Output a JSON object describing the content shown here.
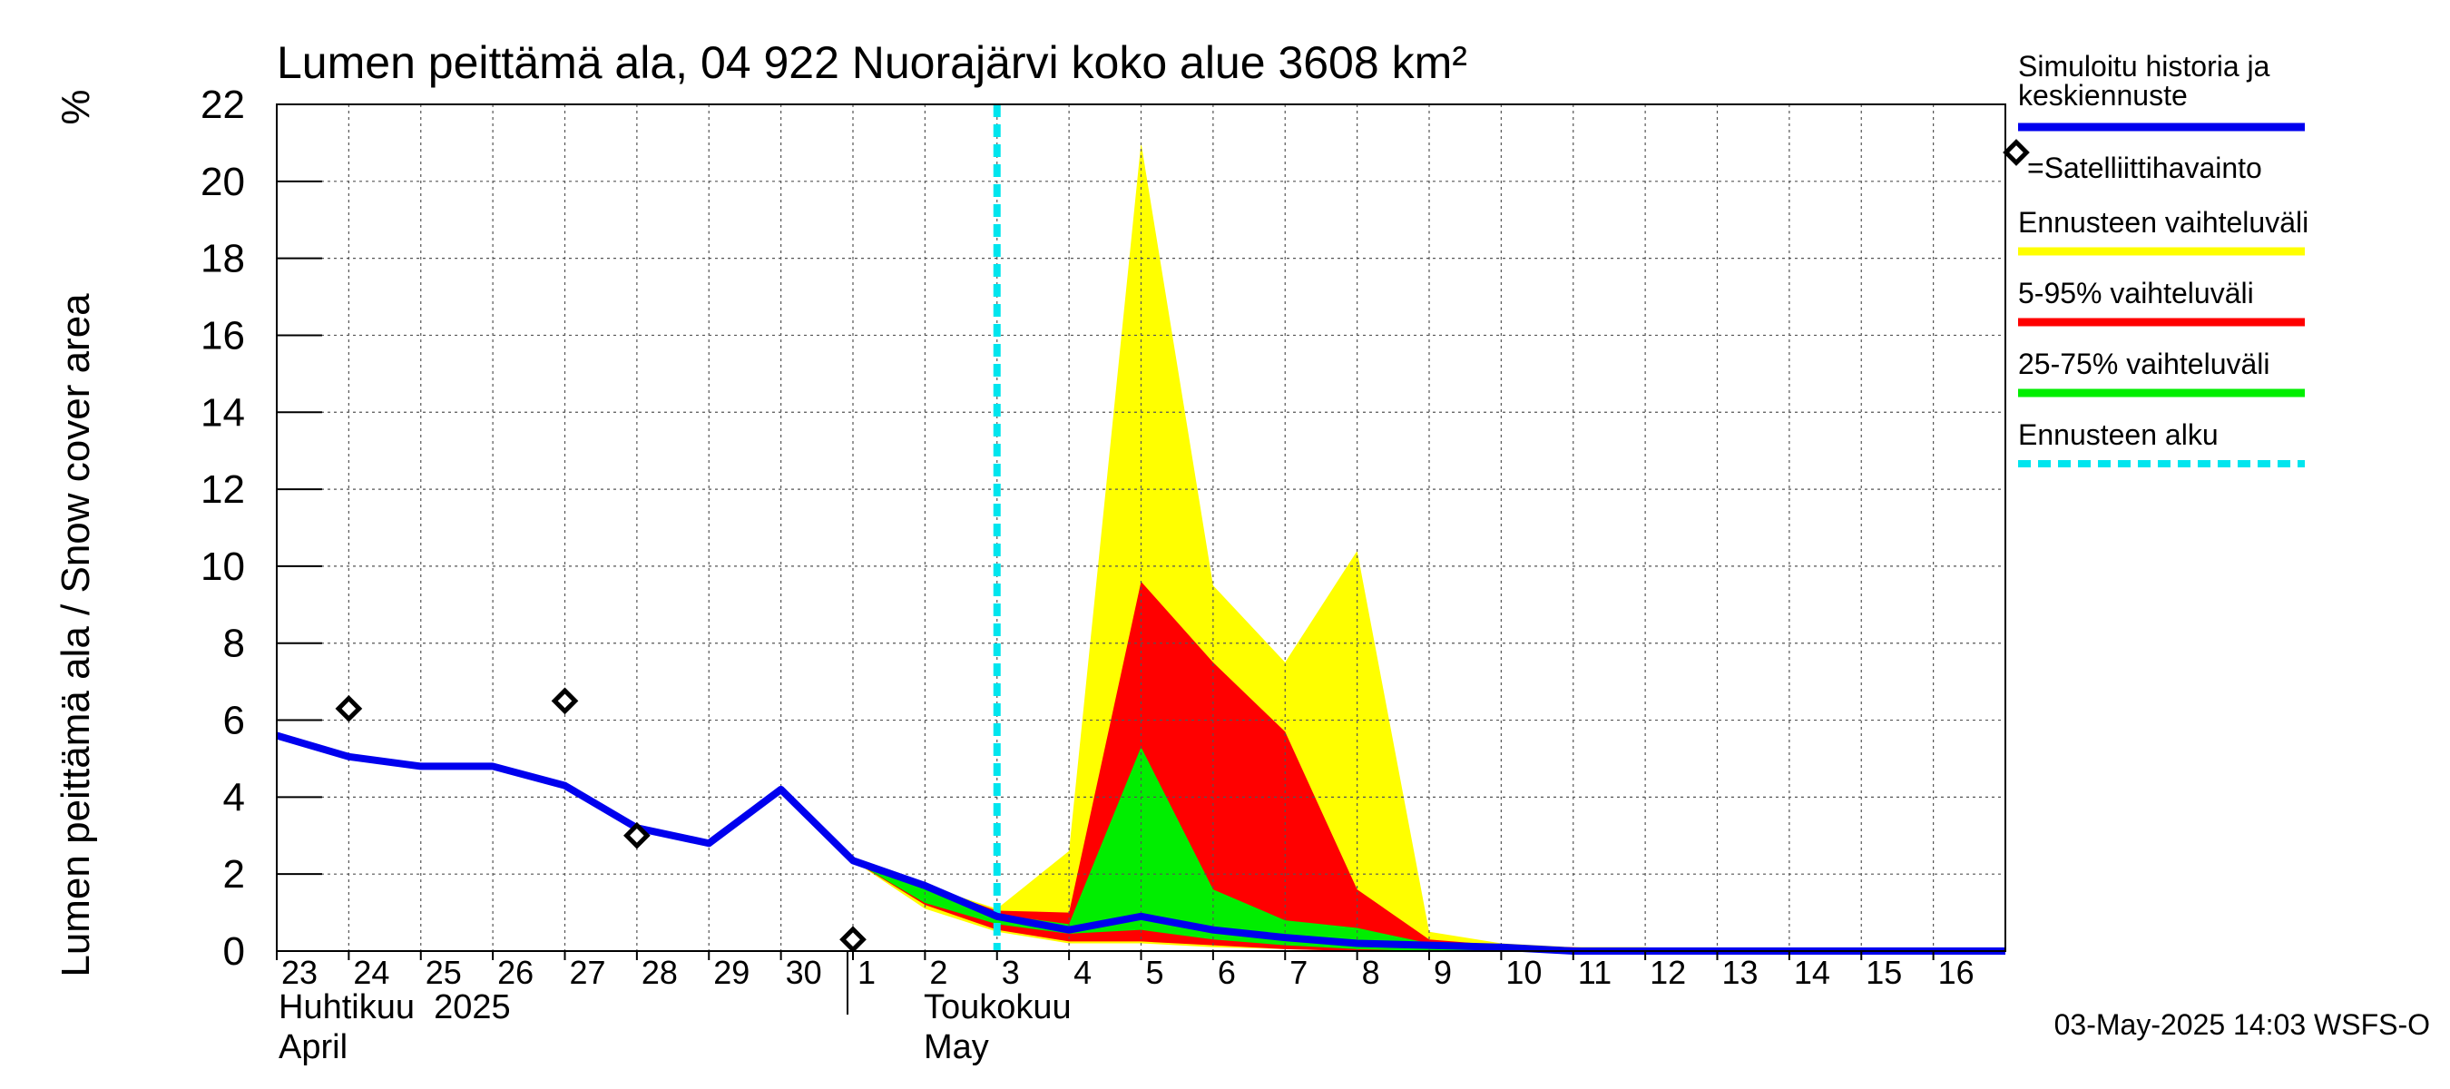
{
  "chart_data": {
    "type": "area",
    "title": "Lumen peittämä ala, 04 922 Nuorajärvi koko alue 3608 km²",
    "ylabel": "Lumen peittämä ala / Snow cover area",
    "yunit": "%",
    "ylim": [
      0,
      22
    ],
    "yticks": [
      0,
      2,
      4,
      6,
      8,
      10,
      12,
      14,
      16,
      18,
      20,
      22
    ],
    "grid": true,
    "x_dates": [
      "2025-04-23",
      "2025-04-24",
      "2025-04-25",
      "2025-04-26",
      "2025-04-27",
      "2025-04-28",
      "2025-04-29",
      "2025-04-30",
      "2025-05-01",
      "2025-05-02",
      "2025-05-03",
      "2025-05-04",
      "2025-05-05",
      "2025-05-06",
      "2025-05-07",
      "2025-05-08",
      "2025-05-09",
      "2025-05-10",
      "2025-05-11",
      "2025-05-12",
      "2025-05-13",
      "2025-05-14",
      "2025-05-15",
      "2025-05-16",
      "2025-05-17"
    ],
    "x_tick_labels": [
      "23",
      "24",
      "25",
      "26",
      "27",
      "28",
      "29",
      "30",
      "1",
      "2",
      "3",
      "4",
      "5",
      "6",
      "7",
      "8",
      "9",
      "10",
      "11",
      "12",
      "13",
      "14",
      "15",
      "16"
    ],
    "month_labels": [
      {
        "fi": "Huhtikuu  2025",
        "en": "April"
      },
      {
        "fi": "Toukokuu",
        "en": "May"
      }
    ],
    "forecast_start": "2025-05-03",
    "series": [
      {
        "name": "Simuloitu historia ja keskiennuste",
        "color": "#0000ee",
        "x": [
          "2025-04-23",
          "2025-04-24",
          "2025-04-25",
          "2025-04-26",
          "2025-04-27",
          "2025-04-28",
          "2025-04-29",
          "2025-04-30",
          "2025-05-01",
          "2025-05-02",
          "2025-05-03",
          "2025-05-04",
          "2025-05-05",
          "2025-05-06",
          "2025-05-07",
          "2025-05-08",
          "2025-05-09",
          "2025-05-10",
          "2025-05-11",
          "2025-05-12",
          "2025-05-13",
          "2025-05-14",
          "2025-05-15",
          "2025-05-16",
          "2025-05-17"
        ],
        "y": [
          5.6,
          5.05,
          4.8,
          4.8,
          4.3,
          3.2,
          2.8,
          4.2,
          2.35,
          1.7,
          0.9,
          0.55,
          0.9,
          0.55,
          0.35,
          0.2,
          0.15,
          0.1,
          0.0,
          0.0,
          0.0,
          0.0,
          0.0,
          0.0,
          0.0
        ]
      }
    ],
    "bands": [
      {
        "name": "Ennusteen vaihteluväli",
        "color": "#ffff00",
        "x": [
          "2025-05-01",
          "2025-05-02",
          "2025-05-03",
          "2025-05-04",
          "2025-05-05",
          "2025-05-06",
          "2025-05-07",
          "2025-05-08",
          "2025-05-09",
          "2025-05-10",
          "2025-05-11",
          "2025-05-12",
          "2025-05-13",
          "2025-05-14",
          "2025-05-15",
          "2025-05-16",
          "2025-05-17"
        ],
        "upper": [
          2.35,
          1.7,
          1.1,
          2.6,
          21.0,
          9.5,
          7.5,
          10.4,
          0.5,
          0.2,
          0.1,
          0.1,
          0.0,
          0.0,
          0.0,
          0.0,
          0.0
        ],
        "lower": [
          2.35,
          1.1,
          0.5,
          0.2,
          0.2,
          0.1,
          0.05,
          0.0,
          0.0,
          0.0,
          0.0,
          0.0,
          0.0,
          0.0,
          0.0,
          0.0,
          0.0
        ]
      },
      {
        "name": "5-95% vaihteluväli",
        "color": "#ff0000",
        "x": [
          "2025-05-01",
          "2025-05-02",
          "2025-05-03",
          "2025-05-04",
          "2025-05-05",
          "2025-05-06",
          "2025-05-07",
          "2025-05-08",
          "2025-05-09",
          "2025-05-10",
          "2025-05-11",
          "2025-05-12",
          "2025-05-13",
          "2025-05-14",
          "2025-05-15",
          "2025-05-16",
          "2025-05-17"
        ],
        "upper": [
          2.35,
          1.7,
          1.05,
          1.0,
          9.6,
          7.5,
          5.7,
          1.6,
          0.3,
          0.15,
          0.1,
          0.05,
          0.0,
          0.0,
          0.0,
          0.0,
          0.0
        ],
        "lower": [
          2.35,
          1.2,
          0.55,
          0.25,
          0.25,
          0.15,
          0.05,
          0.0,
          0.0,
          0.0,
          0.0,
          0.0,
          0.0,
          0.0,
          0.0,
          0.0,
          0.0
        ]
      },
      {
        "name": "25-75% vaihteluväli",
        "color": "#00ee00",
        "x": [
          "2025-05-01",
          "2025-05-02",
          "2025-05-03",
          "2025-05-04",
          "2025-05-05",
          "2025-05-06",
          "2025-05-07",
          "2025-05-08",
          "2025-05-09",
          "2025-05-10",
          "2025-05-11",
          "2025-05-12",
          "2025-05-13",
          "2025-05-14",
          "2025-05-15",
          "2025-05-16",
          "2025-05-17"
        ],
        "upper": [
          2.35,
          1.6,
          0.95,
          0.7,
          5.3,
          1.6,
          0.8,
          0.6,
          0.2,
          0.1,
          0.05,
          0.0,
          0.0,
          0.0,
          0.0,
          0.0,
          0.0
        ],
        "lower": [
          2.35,
          1.25,
          0.7,
          0.45,
          0.55,
          0.3,
          0.15,
          0.05,
          0.0,
          0.0,
          0.0,
          0.0,
          0.0,
          0.0,
          0.0,
          0.0,
          0.0
        ]
      }
    ],
    "satellite_observations": {
      "name": "=Satelliittihavainto",
      "x": [
        "2025-04-24",
        "2025-04-27",
        "2025-04-28",
        "2025-05-01"
      ],
      "y": [
        6.3,
        6.5,
        3.0,
        0.3
      ]
    },
    "legend": {
      "placement": "right",
      "items": [
        {
          "label": "Simuloitu historia ja keskiennuste",
          "kind": "line",
          "color": "#0000ee"
        },
        {
          "label": "=Satelliittihavainto",
          "kind": "marker",
          "color": "#000000"
        },
        {
          "label": "Ennusteen vaihteluväli",
          "kind": "line",
          "color": "#ffff00"
        },
        {
          "label": "5-95% vaihteluväli",
          "kind": "line",
          "color": "#ff0000"
        },
        {
          "label": "25-75% vaihteluväli",
          "kind": "line",
          "color": "#00ee00"
        },
        {
          "label": "Ennusteen alku",
          "kind": "dashed",
          "color": "#00e5ee"
        }
      ]
    },
    "footer": "03-May-2025 14:03 WSFS-O"
  }
}
